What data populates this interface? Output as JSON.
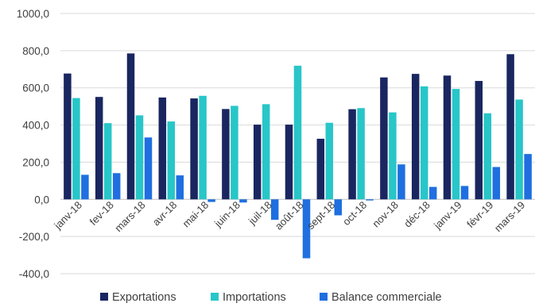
{
  "chart_data": {
    "type": "bar",
    "categories": [
      "janv-18",
      "fev-18",
      "mars-18",
      "avr-18",
      "mai-18",
      "juin-18",
      "juil-18",
      "août-18",
      "sept-18",
      "oct-18",
      "nov-18",
      "déc-18",
      "janv-19",
      "févr-19",
      "mars-19"
    ],
    "series": [
      {
        "name": "Exportations",
        "color": "#1a2660",
        "values": [
          677,
          551,
          785,
          548,
          543,
          486,
          402,
          402,
          326,
          485,
          656,
          675,
          666,
          637,
          781
        ]
      },
      {
        "name": "Importations",
        "color": "#28c6c8",
        "values": [
          545,
          410,
          452,
          419,
          557,
          503,
          512,
          719,
          412,
          491,
          468,
          608,
          594,
          463,
          537
        ]
      },
      {
        "name": "Balance commerciale",
        "color": "#1f6fe0",
        "values": [
          132,
          141,
          333,
          129,
          -14,
          -17,
          -110,
          -317,
          -86,
          -6,
          188,
          67,
          72,
          174,
          244
        ]
      }
    ],
    "ylim": [
      -400,
      1000
    ],
    "yticks": [
      "-400,0",
      "-200,0",
      "0,0",
      "200,0",
      "400,0",
      "600,0",
      "800,0",
      "1000,0"
    ],
    "ytick_values": [
      -400,
      -200,
      0,
      200,
      400,
      600,
      800,
      1000
    ],
    "grid": true,
    "legend": "bottom",
    "title": "",
    "xlabel": "",
    "ylabel": ""
  }
}
